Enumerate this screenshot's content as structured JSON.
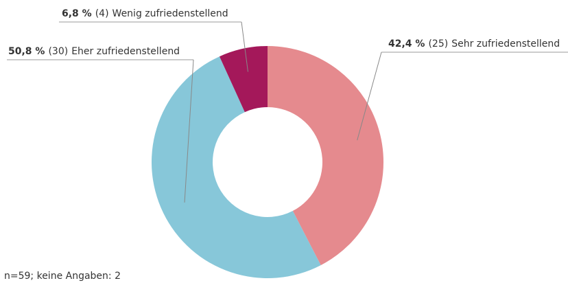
{
  "chart_data": {
    "type": "donut",
    "categories": [
      "Sehr zufriedenstellend",
      "Eher zufriedenstellend",
      "Wenig zufriedenstellend"
    ],
    "values": [
      42.4,
      50.8,
      6.8
    ],
    "value_labels": [
      "42,4 %",
      "50,8 %",
      "6,8 %"
    ],
    "counts": [
      "(25)",
      "(30)",
      "(4)"
    ],
    "colors": [
      "#e58a8e",
      "#87c7d9",
      "#a4185a"
    ],
    "note": "n=59; keine Angaben: 2"
  }
}
